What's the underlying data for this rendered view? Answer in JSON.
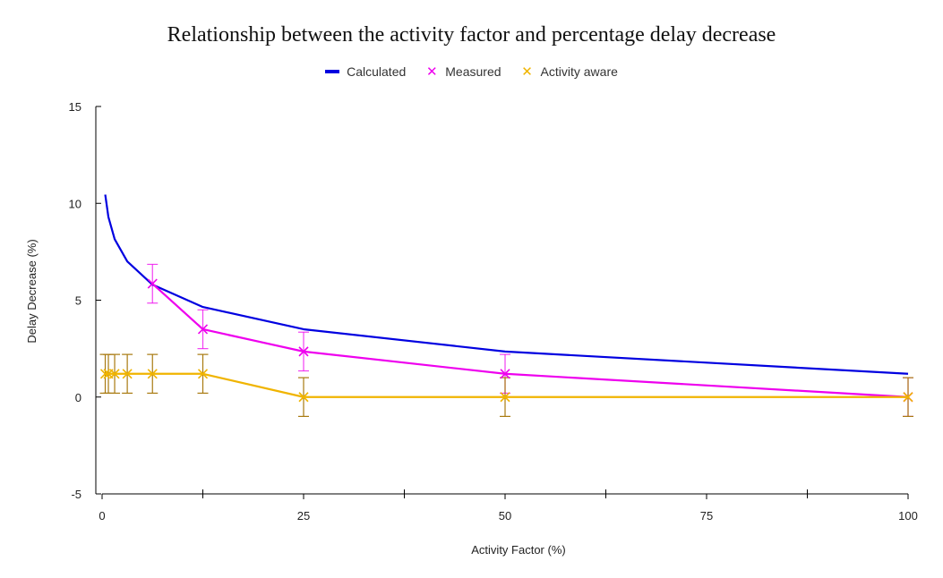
{
  "chart_data": {
    "type": "line",
    "title": "Relationship between the activity factor and percentage delay decrease",
    "xlabel": "Activity Factor (%)",
    "ylabel": "Delay Decrease (%)",
    "xlim": [
      0,
      100
    ],
    "ylim": [
      -5,
      15
    ],
    "x_ticks": [
      0,
      25,
      50,
      75,
      100
    ],
    "y_ticks": [
      -5,
      0,
      5,
      10,
      15
    ],
    "x_minor_ticks": [
      12.5,
      37.5,
      62.5,
      87.5
    ],
    "grid": false,
    "legend_position": "top",
    "series": [
      {
        "name": "Calculated",
        "color": "#0000e0",
        "marker": "none",
        "x": [
          0.39,
          0.78,
          1.56,
          3.125,
          6.25,
          12.5,
          25,
          50,
          100
        ],
        "y": [
          10.45,
          9.3,
          8.15,
          7.0,
          5.8,
          4.65,
          3.5,
          2.35,
          1.2
        ],
        "error": null
      },
      {
        "name": "Measured",
        "color": "#ee00ee",
        "marker": "x",
        "x": [
          6.25,
          12.5,
          25,
          50,
          100
        ],
        "y": [
          5.85,
          3.5,
          2.35,
          1.2,
          0
        ],
        "error": [
          1.0,
          1.0,
          1.0,
          1.0,
          1.0
        ]
      },
      {
        "name": "Activity aware",
        "color": "#f0b400",
        "error_color": "#a87a10",
        "marker": "x",
        "x": [
          0.39,
          0.78,
          1.56,
          3.125,
          6.25,
          12.5,
          25,
          50,
          100
        ],
        "y": [
          1.2,
          1.2,
          1.2,
          1.2,
          1.2,
          1.2,
          0,
          0,
          0
        ],
        "error": [
          1.0,
          1.0,
          1.0,
          1.0,
          1.0,
          1.0,
          1.0,
          1.0,
          1.0
        ]
      }
    ]
  }
}
